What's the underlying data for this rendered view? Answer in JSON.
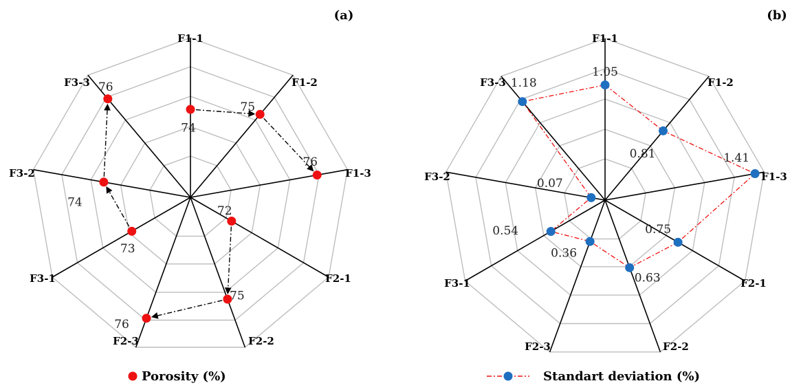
{
  "chart_data": [
    {
      "type": "radar",
      "panel_label": "(a)",
      "categories": [
        "F1-1",
        "F1-2",
        "F1-3",
        "F2-1",
        "F2-2",
        "F2-3",
        "F3-1",
        "F3-2",
        "F3-3"
      ],
      "series": [
        {
          "name": "Porosity (%)",
          "values": [
            74,
            75,
            76,
            72,
            75,
            76,
            73,
            74,
            76
          ],
          "color": "#ee1111",
          "marker": "circle"
        }
      ],
      "data_labels": [
        "74",
        "75",
        "76",
        "72",
        "75",
        "76",
        "73",
        "74",
        "76"
      ],
      "range": [
        70,
        77
      ],
      "grid_rings": 4,
      "arrows": "dash-dot arrows connecting F1-1→F1-2→F1-3, F2-1→F2-2→F2-3, F3-1→F3-2→F3-3",
      "legend": "bottom"
    },
    {
      "type": "radar",
      "panel_label": "(b)",
      "categories": [
        "F1-1",
        "F1-2",
        "F1-3",
        "F2-1",
        "F2-2",
        "F2-3",
        "F3-1",
        "F3-2",
        "F3-3"
      ],
      "series": [
        {
          "name": "Standart deviation (%)",
          "values": [
            1.05,
            0.81,
            1.41,
            0.75,
            0.63,
            0.36,
            0.54,
            0.07,
            1.18
          ],
          "color": "#1f6fc0",
          "line_color": "#ee1111",
          "line_style": "dash-dot",
          "marker": "circle"
        }
      ],
      "data_labels": [
        "1.05",
        "0.81",
        "1.41",
        "0.75",
        "0.63",
        "0.36",
        "0.54",
        "0.07",
        "1.18"
      ],
      "range": [
        0,
        1.5
      ],
      "grid_rings": 4,
      "legend": "bottom"
    }
  ]
}
